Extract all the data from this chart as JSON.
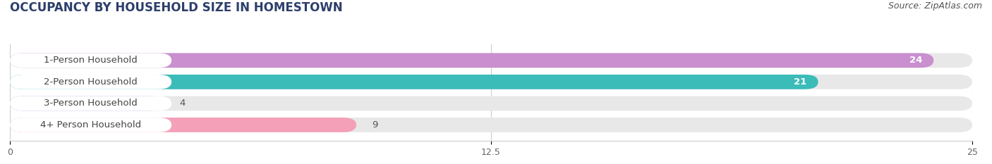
{
  "title": "OCCUPANCY BY HOUSEHOLD SIZE IN HOMESTOWN",
  "source": "Source: ZipAtlas.com",
  "categories": [
    "1-Person Household",
    "2-Person Household",
    "3-Person Household",
    "4+ Person Household"
  ],
  "values": [
    24,
    21,
    4,
    9
  ],
  "bar_colors": [
    "#c98fce",
    "#3bbcb8",
    "#aaaadd",
    "#f4a0b8"
  ],
  "bar_bg_color": "#e8e8e8",
  "label_bg_color": "#ffffff",
  "xlim": [
    0,
    25
  ],
  "xticks": [
    0,
    12.5,
    25
  ],
  "title_fontsize": 12,
  "source_fontsize": 9,
  "label_fontsize": 9.5,
  "value_fontsize": 9.5,
  "tick_fontsize": 9,
  "bar_height": 0.68,
  "background_color": "#ffffff",
  "title_color": "#2c3e6b",
  "source_color": "#555555",
  "label_color": "#444444",
  "value_color_inside": "#ffffff",
  "value_color_outside": "#555555"
}
